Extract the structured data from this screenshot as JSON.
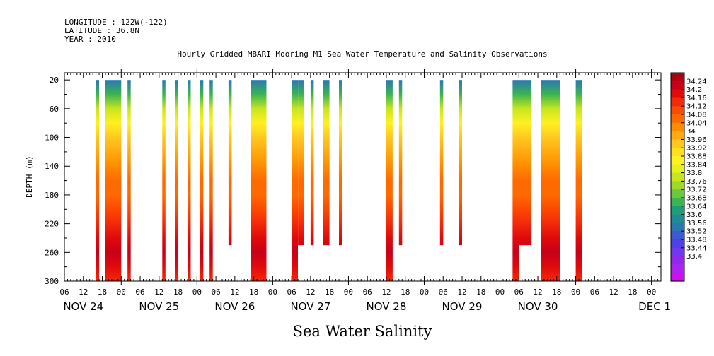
{
  "header": {
    "longitude": "LONGITUDE : 122W(-122)",
    "latitude": "LATITUDE : 36.8N",
    "year": "YEAR : 2010"
  },
  "chart_data": {
    "type": "heatmap",
    "title": "Hourly Gridded MBARI Mooring M1 Sea Water Temperature and Salinity Observations",
    "subtitle": "Sea Water Salinity",
    "xlabel": "",
    "ylabel": "DEPTH (m)",
    "ylim": [
      300,
      0
    ],
    "y_ticks": [
      20,
      60,
      100,
      140,
      180,
      220,
      260,
      300
    ],
    "xlim": [
      "NOV 23 06:00",
      "DEC 1 03:00"
    ],
    "x_hour_ticks": [
      "06",
      "12",
      "18",
      "00",
      "06",
      "12",
      "18",
      "00",
      "06",
      "12",
      "18",
      "00",
      "06",
      "12",
      "18",
      "00",
      "06",
      "12",
      "18",
      "00",
      "06",
      "12",
      "18",
      "00",
      "06",
      "12",
      "18",
      "00",
      "06",
      "12",
      "18",
      "00"
    ],
    "x_day_labels": [
      "NOV 24",
      "NOV 25",
      "NOV 26",
      "NOV 27",
      "NOV 28",
      "NOV 29",
      "NOV 30",
      "DEC  1"
    ],
    "colorbar_levels": [
      "34.24",
      "34.2",
      "34.16",
      "34.12",
      "34.08",
      "34.04",
      "34",
      "33.96",
      "33.92",
      "33.88",
      "33.84",
      "33.8",
      "33.76",
      "33.72",
      "33.68",
      "33.64",
      "33.6",
      "33.56",
      "33.52",
      "33.48",
      "33.44",
      "33.4"
    ],
    "colorbar_colors": [
      "#b00010",
      "#c8001a",
      "#e00a0a",
      "#f22a0a",
      "#fc4a00",
      "#ff6a00",
      "#ff8c00",
      "#ffaa10",
      "#ffc820",
      "#ffe01a",
      "#fff020",
      "#e6f01a",
      "#c8e61e",
      "#a0d828",
      "#6ec83c",
      "#3cb450",
      "#1e9e78",
      "#1e8c96",
      "#2878b4",
      "#3c5ad2",
      "#5040e6",
      "#7038f0",
      "#9028f0",
      "#b020f0",
      "#cc10f0"
    ],
    "depth_profile": [
      {
        "depth": 20,
        "salinity": 33.55
      },
      {
        "depth": 40,
        "salinity": 33.66
      },
      {
        "depth": 60,
        "salinity": 33.78
      },
      {
        "depth": 80,
        "salinity": 33.86
      },
      {
        "depth": 100,
        "salinity": 33.93
      },
      {
        "depth": 120,
        "salinity": 33.98
      },
      {
        "depth": 140,
        "salinity": 34.02
      },
      {
        "depth": 160,
        "salinity": 34.05
      },
      {
        "depth": 180,
        "salinity": 34.06
      },
      {
        "depth": 200,
        "salinity": 34.08
      },
      {
        "depth": 220,
        "salinity": 34.12
      },
      {
        "depth": 240,
        "salinity": 34.16
      },
      {
        "depth": 260,
        "salinity": 34.2
      },
      {
        "depth": 280,
        "salinity": 34.16
      },
      {
        "depth": 300,
        "salinity": 34.14
      }
    ],
    "observation_bars": [
      {
        "start": "NOV 23 16:00",
        "end": "NOV 23 17:00",
        "max_depth": 300
      },
      {
        "start": "NOV 23 19:00",
        "end": "NOV 24 00:00",
        "max_depth": 300
      },
      {
        "start": "NOV 24 02:00",
        "end": "NOV 24 03:00",
        "max_depth": 300
      },
      {
        "start": "NOV 24 13:00",
        "end": "NOV 24 14:00",
        "max_depth": 300
      },
      {
        "start": "NOV 24 17:00",
        "end": "NOV 24 18:00",
        "max_depth": 300
      },
      {
        "start": "NOV 24 21:00",
        "end": "NOV 24 22:00",
        "max_depth": 300
      },
      {
        "start": "NOV 25 01:00",
        "end": "NOV 25 02:00",
        "max_depth": 300
      },
      {
        "start": "NOV 25 04:00",
        "end": "NOV 25 05:00",
        "max_depth": 300
      },
      {
        "start": "NOV 25 10:00",
        "end": "NOV 25 11:00",
        "max_depth": 250
      },
      {
        "start": "NOV 25 17:00",
        "end": "NOV 25 22:00",
        "max_depth": 300
      },
      {
        "start": "NOV 26 06:00",
        "end": "NOV 26 08:00",
        "max_depth": 300
      },
      {
        "start": "NOV 26 08:00",
        "end": "NOV 26 10:00",
        "max_depth": 250
      },
      {
        "start": "NOV 26 12:00",
        "end": "NOV 26 13:00",
        "max_depth": 250
      },
      {
        "start": "NOV 26 16:00",
        "end": "NOV 26 18:00",
        "max_depth": 250
      },
      {
        "start": "NOV 26 21:00",
        "end": "NOV 26 22:00",
        "max_depth": 250
      },
      {
        "start": "NOV 27 12:00",
        "end": "NOV 27 14:00",
        "max_depth": 300
      },
      {
        "start": "NOV 27 16:00",
        "end": "NOV 27 17:00",
        "max_depth": 250
      },
      {
        "start": "NOV 28 05:00",
        "end": "NOV 28 06:00",
        "max_depth": 250
      },
      {
        "start": "NOV 28 11:00",
        "end": "NOV 28 12:00",
        "max_depth": 250
      },
      {
        "start": "NOV 29 04:00",
        "end": "NOV 29 06:00",
        "max_depth": 300
      },
      {
        "start": "NOV 29 06:00",
        "end": "NOV 29 10:00",
        "max_depth": 250
      },
      {
        "start": "NOV 29 13:00",
        "end": "NOV 29 19:00",
        "max_depth": 300
      },
      {
        "start": "NOV 30 00:00",
        "end": "NOV 30 02:00",
        "max_depth": 300
      }
    ]
  }
}
